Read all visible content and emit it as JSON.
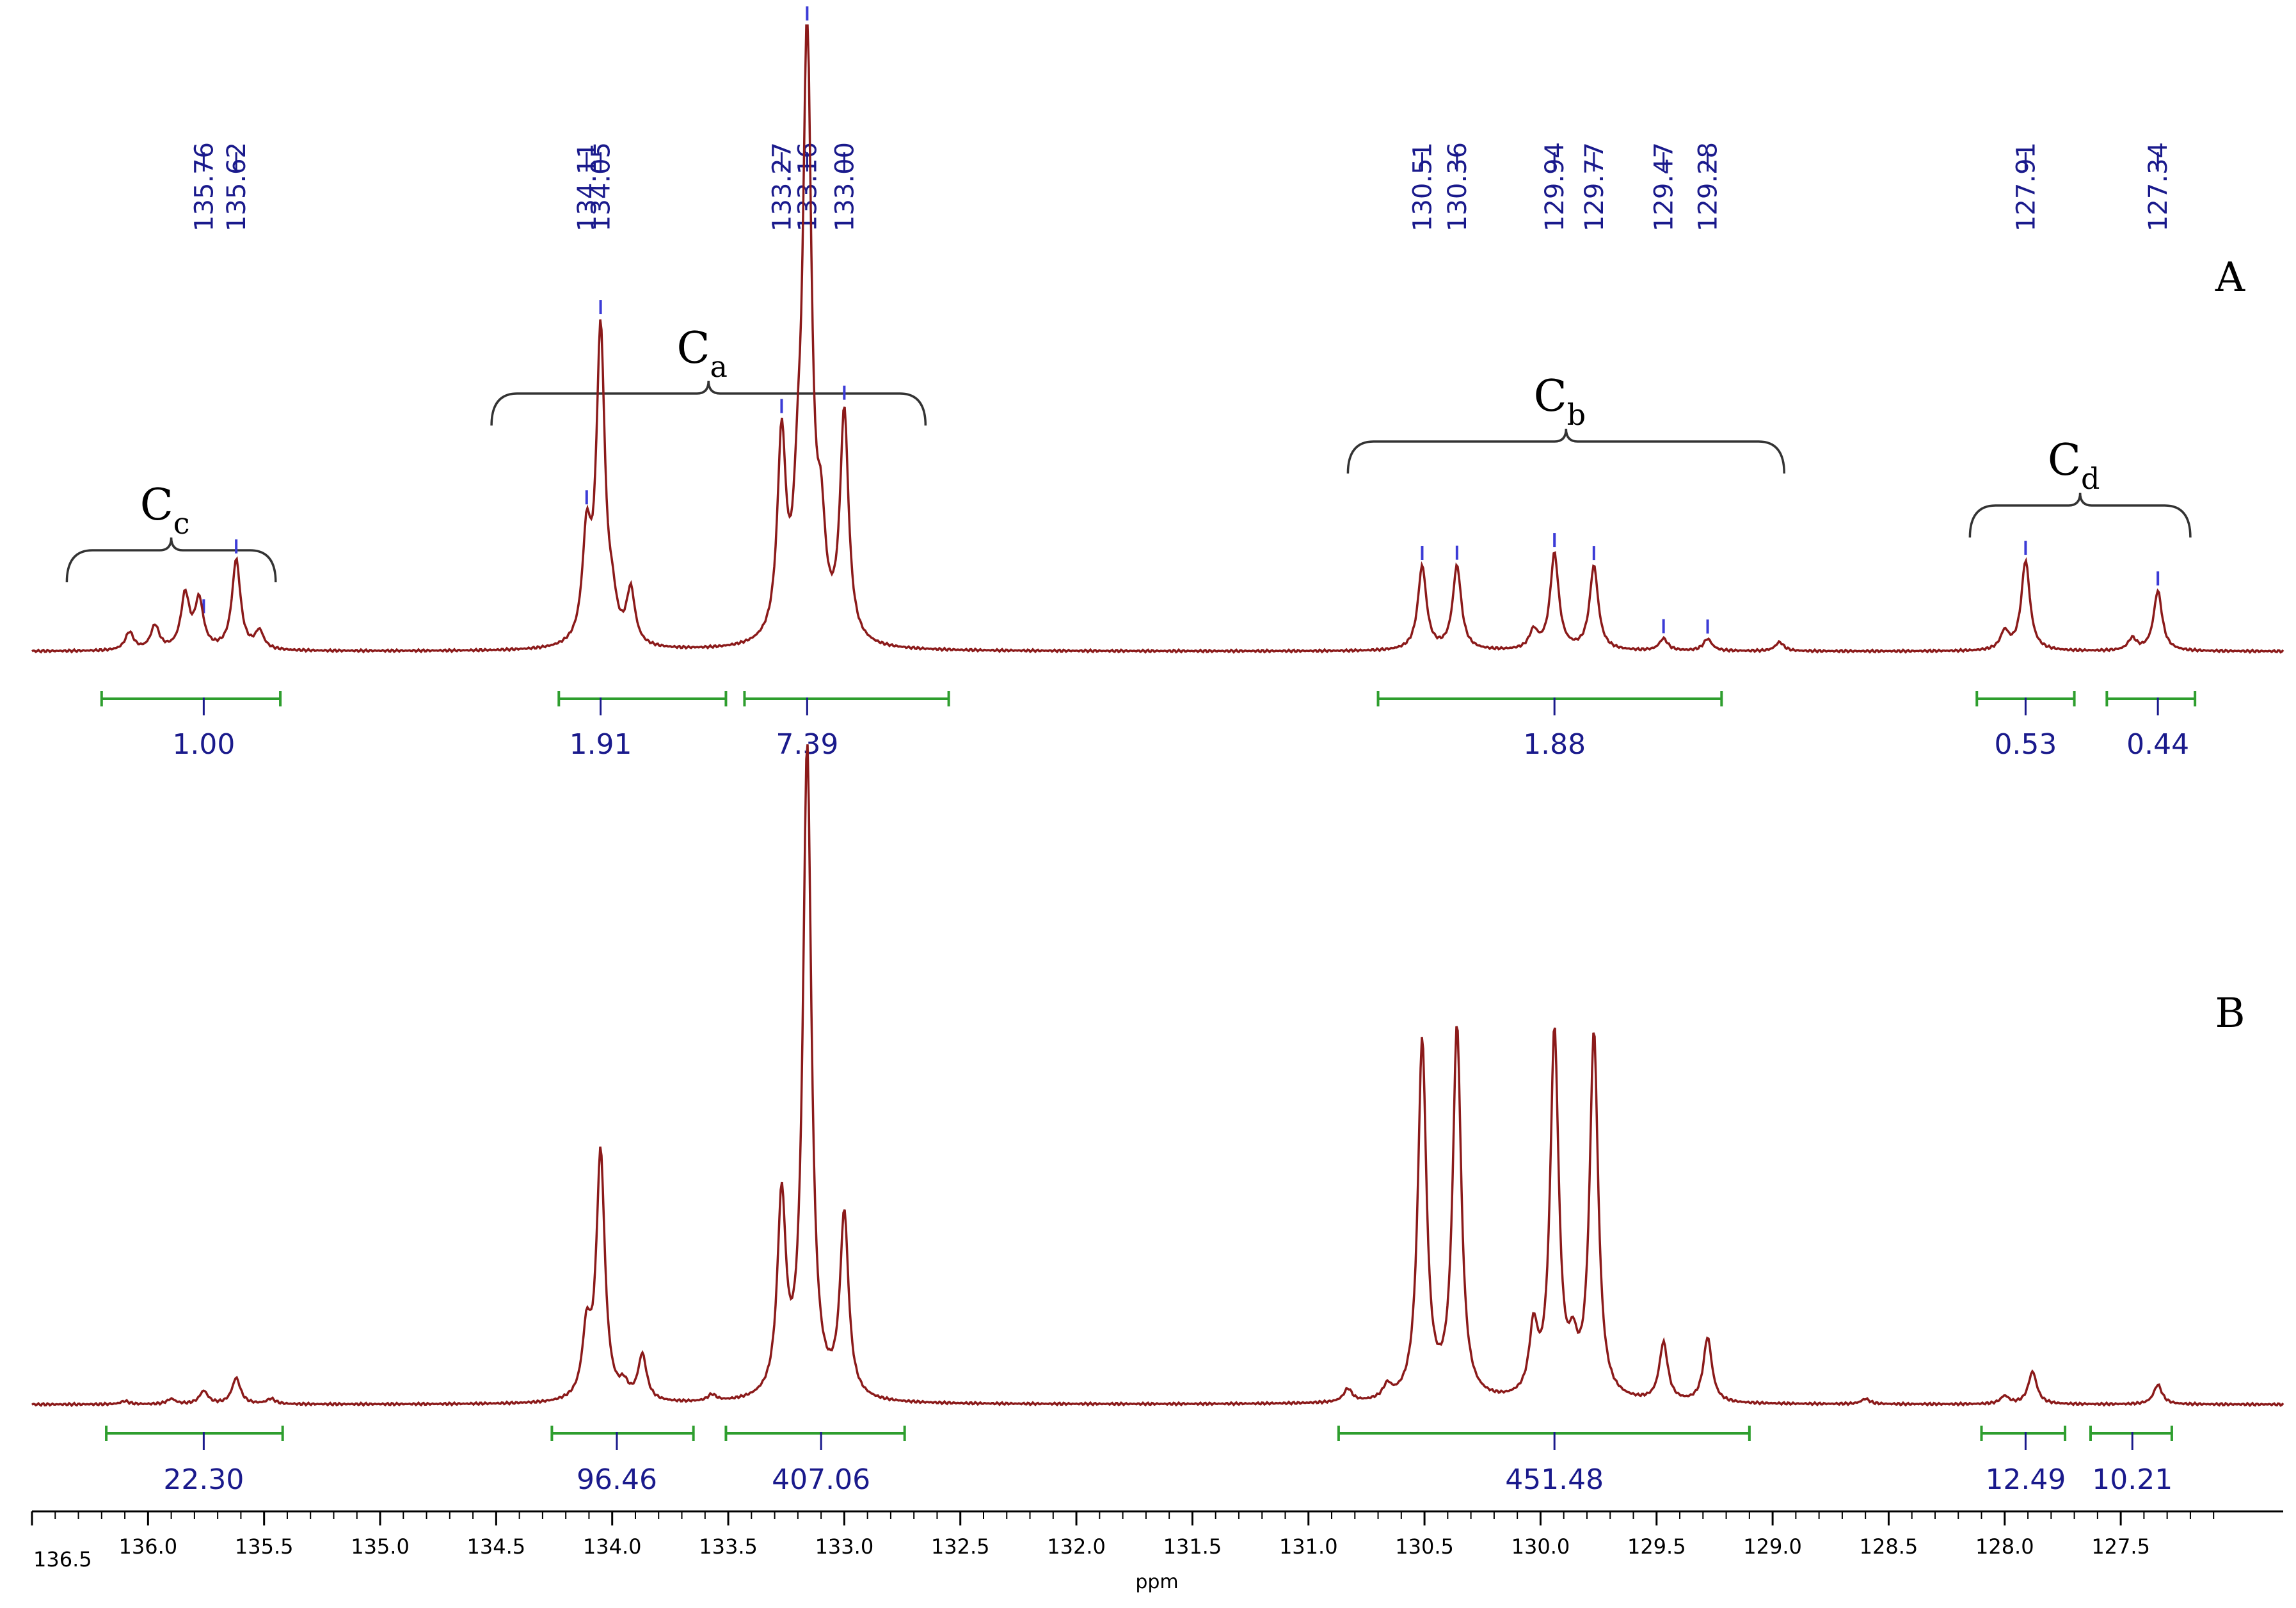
{
  "chart_data": {
    "type": "line",
    "xlabel": "ppm",
    "xlim": [
      136.5,
      126.8
    ],
    "x_ticks": [
      "136.5",
      "136.0",
      "135.5",
      "135.0",
      "134.5",
      "134.0",
      "133.5",
      "133.0",
      "132.5",
      "132.0",
      "131.5",
      "131.0",
      "130.5",
      "130.0",
      "129.5",
      "129.0",
      "128.5",
      "128.0",
      "127.5"
    ],
    "colors": {
      "spectrum": "#8b1a1a",
      "integral": "#2e9e2e",
      "label": "#1a1a8c",
      "bracket": "#333333"
    },
    "panels": [
      {
        "label": "A",
        "peaks": [
          {
            "ppm": 136.08,
            "h": 0.03
          },
          {
            "ppm": 135.97,
            "h": 0.04
          },
          {
            "ppm": 135.84,
            "h": 0.09
          },
          {
            "ppm": 135.78,
            "h": 0.08
          },
          {
            "ppm": 135.62,
            "h": 0.15
          },
          {
            "ppm": 135.52,
            "h": 0.03
          },
          {
            "ppm": 134.11,
            "h": 0.17
          },
          {
            "ppm": 134.05,
            "h": 0.52
          },
          {
            "ppm": 134.0,
            "h": 0.05
          },
          {
            "ppm": 133.92,
            "h": 0.09
          },
          {
            "ppm": 133.27,
            "h": 0.33
          },
          {
            "ppm": 133.2,
            "h": 0.15
          },
          {
            "ppm": 133.16,
            "h": 1.0
          },
          {
            "ppm": 133.1,
            "h": 0.15
          },
          {
            "ppm": 133.0,
            "h": 0.38
          },
          {
            "ppm": 130.51,
            "h": 0.14
          },
          {
            "ppm": 130.36,
            "h": 0.14
          },
          {
            "ppm": 130.03,
            "h": 0.03
          },
          {
            "ppm": 129.94,
            "h": 0.16
          },
          {
            "ppm": 129.77,
            "h": 0.14
          },
          {
            "ppm": 129.47,
            "h": 0.02
          },
          {
            "ppm": 129.28,
            "h": 0.02
          },
          {
            "ppm": 128.97,
            "h": 0.015
          },
          {
            "ppm": 128.0,
            "h": 0.03
          },
          {
            "ppm": 127.91,
            "h": 0.15
          },
          {
            "ppm": 127.45,
            "h": 0.02
          },
          {
            "ppm": 127.34,
            "h": 0.1
          }
        ],
        "peak_labels": [
          "135.76",
          "135.62",
          "134.11",
          "134.05",
          "133.27",
          "133.16",
          "133.00",
          "130.51",
          "130.36",
          "129.94",
          "129.77",
          "129.47",
          "129.28",
          "127.91",
          "127.34"
        ],
        "peak_label_ppm": [
          135.76,
          135.62,
          134.11,
          134.05,
          133.27,
          133.16,
          133.0,
          130.51,
          130.36,
          129.94,
          129.77,
          129.47,
          129.28,
          127.91,
          127.34
        ],
        "groups": [
          {
            "main": "C",
            "sub": "c",
            "from": 136.35,
            "to": 135.45
          },
          {
            "main": "C",
            "sub": "a",
            "from": 134.52,
            "to": 132.65
          },
          {
            "main": "C",
            "sub": "b",
            "from": 130.83,
            "to": 128.95
          },
          {
            "main": "C",
            "sub": "d",
            "from": 128.15,
            "to": 127.2
          }
        ],
        "integrals": [
          {
            "value": "1.00",
            "from": 136.2,
            "to": 135.43,
            "mid": 135.76
          },
          {
            "value": "1.91",
            "from": 134.23,
            "to": 133.51,
            "mid": 134.05
          },
          {
            "value": "7.39",
            "from": 133.43,
            "to": 132.55,
            "mid": 133.16
          },
          {
            "value": "1.88",
            "from": 130.7,
            "to": 129.22,
            "mid": 129.94
          },
          {
            "value": "0.53",
            "from": 128.12,
            "to": 127.7,
            "mid": 127.91
          },
          {
            "value": "0.44",
            "from": 127.56,
            "to": 127.18,
            "mid": 127.34
          }
        ]
      },
      {
        "label": "B",
        "peaks": [
          {
            "ppm": 136.1,
            "h": 0.005
          },
          {
            "ppm": 135.9,
            "h": 0.008
          },
          {
            "ppm": 135.76,
            "h": 0.02
          },
          {
            "ppm": 135.62,
            "h": 0.04
          },
          {
            "ppm": 135.47,
            "h": 0.008
          },
          {
            "ppm": 134.11,
            "h": 0.1
          },
          {
            "ppm": 134.05,
            "h": 0.38
          },
          {
            "ppm": 133.95,
            "h": 0.02
          },
          {
            "ppm": 133.87,
            "h": 0.07
          },
          {
            "ppm": 133.57,
            "h": 0.01
          },
          {
            "ppm": 133.27,
            "h": 0.3
          },
          {
            "ppm": 133.16,
            "h": 1.0
          },
          {
            "ppm": 133.0,
            "h": 0.28
          },
          {
            "ppm": 130.83,
            "h": 0.02
          },
          {
            "ppm": 130.66,
            "h": 0.02
          },
          {
            "ppm": 130.51,
            "h": 0.55
          },
          {
            "ppm": 130.36,
            "h": 0.57
          },
          {
            "ppm": 130.03,
            "h": 0.1
          },
          {
            "ppm": 129.94,
            "h": 0.56
          },
          {
            "ppm": 129.86,
            "h": 0.06
          },
          {
            "ppm": 129.77,
            "h": 0.56
          },
          {
            "ppm": 129.47,
            "h": 0.09
          },
          {
            "ppm": 129.28,
            "h": 0.1
          },
          {
            "ppm": 128.6,
            "h": 0.008
          },
          {
            "ppm": 128.0,
            "h": 0.012
          },
          {
            "ppm": 127.88,
            "h": 0.05
          },
          {
            "ppm": 127.34,
            "h": 0.03
          }
        ],
        "integrals": [
          {
            "value": "22.30",
            "from": 136.18,
            "to": 135.42,
            "mid": 135.76
          },
          {
            "value": "96.46",
            "from": 134.26,
            "to": 133.65,
            "mid": 133.98
          },
          {
            "value": "407.06",
            "from": 133.51,
            "to": 132.74,
            "mid": 133.1
          },
          {
            "value": "451.48",
            "from": 130.87,
            "to": 129.1,
            "mid": 129.94
          },
          {
            "value": "12.49",
            "from": 128.1,
            "to": 127.74,
            "mid": 127.91
          },
          {
            "value": "10.21",
            "from": 127.63,
            "to": 127.28,
            "mid": 127.45
          }
        ]
      }
    ]
  }
}
